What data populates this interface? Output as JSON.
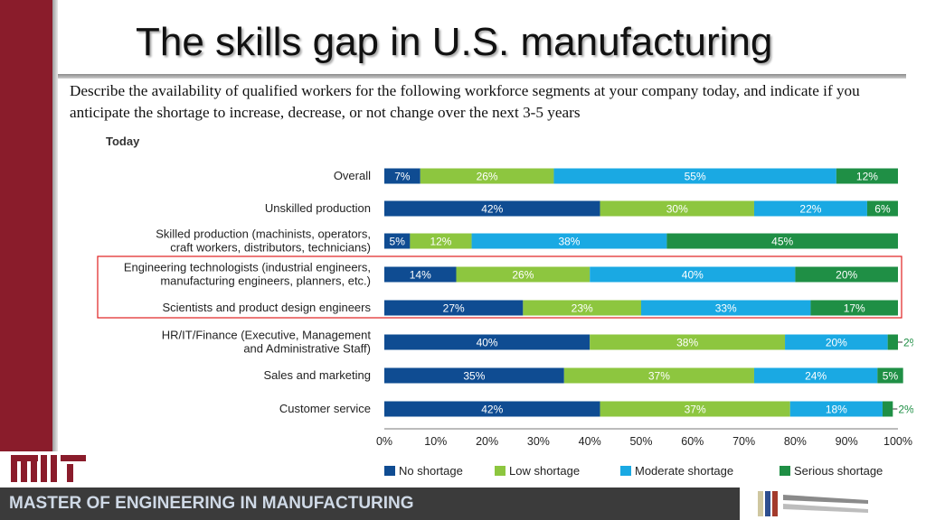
{
  "slide": {
    "title": "The skills gap in U.S. manufacturing",
    "subtitle": "Describe the availability of qualified workers for the following workforce segments at your company today, and indicate if you anticipate the shortage to increase, decrease, or not change over the next 3-5 years",
    "footer": "MASTER OF ENGINEERING IN MANUFACTURING",
    "logo_text": "MIT"
  },
  "colors": {
    "brand": "#8a1c2b",
    "highlight_box": "#e02020",
    "series": [
      "#0f4c92",
      "#8dc63f",
      "#1aa9e3",
      "#1f8f45"
    ]
  },
  "chart_data": {
    "type": "bar",
    "orientation": "horizontal",
    "stacked": true,
    "title": "Today",
    "categories": [
      "Overall",
      "Unskilled production",
      "Skilled production (machinists, operators, craft workers, distributors, technicians)",
      "Engineering technologists (industrial engineers, manufacturing engineers, planners, etc.)",
      "Scientists and product design engineers",
      "HR/IT/Finance (Executive, Management and Administrative Staff)",
      "Sales and marketing",
      "Customer service"
    ],
    "category_lines": [
      [
        "Overall"
      ],
      [
        "Unskilled production"
      ],
      [
        "Skilled production (machinists, operators,",
        "craft workers, distributors, technicians)"
      ],
      [
        "Engineering technologists (industrial engineers,",
        "manufacturing engineers, planners, etc.)"
      ],
      [
        "Scientists and product design engineers"
      ],
      [
        "HR/IT/Finance (Executive, Management",
        "and Administrative Staff)"
      ],
      [
        "Sales and marketing"
      ],
      [
        "Customer service"
      ]
    ],
    "series": [
      {
        "name": "No shortage",
        "values": [
          7,
          42,
          5,
          14,
          27,
          40,
          35,
          42
        ]
      },
      {
        "name": "Low shortage",
        "values": [
          26,
          30,
          12,
          26,
          23,
          38,
          37,
          37
        ]
      },
      {
        "name": "Moderate shortage",
        "values": [
          55,
          22,
          38,
          40,
          33,
          20,
          24,
          18
        ]
      },
      {
        "name": "Serious shortage",
        "values": [
          12,
          6,
          45,
          20,
          17,
          2,
          5,
          2
        ]
      }
    ],
    "x_ticks": [
      "0%",
      "10%",
      "20%",
      "30%",
      "40%",
      "50%",
      "60%",
      "70%",
      "80%",
      "90%",
      "100%"
    ],
    "xlim": [
      0,
      100
    ],
    "highlighted_categories": [
      3,
      4
    ],
    "legend_position": "bottom"
  }
}
